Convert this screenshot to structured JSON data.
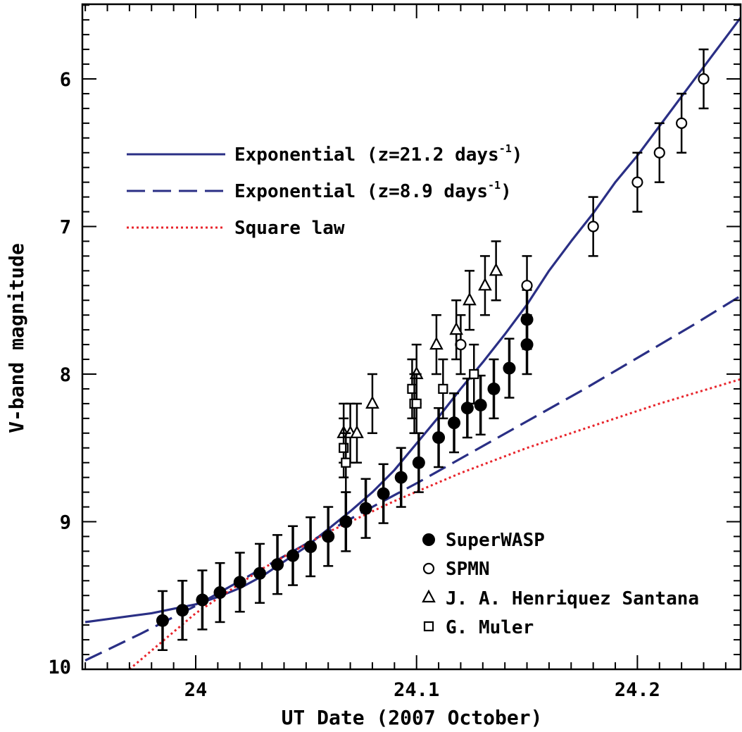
{
  "chart_data": {
    "type": "scatter",
    "xlabel": "UT Date (2007 October)",
    "ylabel": "V-band magnitude",
    "xlim": [
      23.95,
      24.25
    ],
    "ylim": [
      10.0,
      5.5
    ],
    "y_axis_inverted": true,
    "xticks": [
      {
        "value": 24.0,
        "label": "24"
      },
      {
        "value": 24.1,
        "label": "24.1"
      },
      {
        "value": 24.2,
        "label": "24.2"
      }
    ],
    "yticks": [
      {
        "value": 6,
        "label": "6"
      },
      {
        "value": 7,
        "label": "7"
      },
      {
        "value": 8,
        "label": "8"
      },
      {
        "value": 9,
        "label": "9"
      },
      {
        "value": 10,
        "label": "10"
      }
    ],
    "grid": false,
    "line_legend": {
      "placement": "upper-left",
      "entries": [
        {
          "label": "Exponential (z=21.2 days",
          "sup": "-1",
          "label_end": ")",
          "style": "solid",
          "color": "#2a2f85"
        },
        {
          "label": "Exponential (z=8.9 days",
          "sup": "-1",
          "label_end": ")",
          "style": "dashed",
          "color": "#2a2f85"
        },
        {
          "label": "Square law",
          "sup": "",
          "label_end": "",
          "style": "dotted",
          "color": "#e8242b"
        }
      ]
    },
    "marker_legend": {
      "placement": "lower-right",
      "entries": [
        {
          "label": "SuperWASP",
          "marker": "filled-circle"
        },
        {
          "label": "SPMN",
          "marker": "open-circle"
        },
        {
          "label": "J. A. Henriquez Santana",
          "marker": "open-triangle"
        },
        {
          "label": "G. Muler",
          "marker": "open-square"
        }
      ]
    },
    "models": [
      {
        "name": "Exponential (z=21.2 days-1)",
        "style": "solid",
        "color": "#2a2f85",
        "x": [
          23.95,
          23.96,
          23.97,
          23.98,
          23.99,
          24.0,
          24.01,
          24.02,
          24.03,
          24.04,
          24.05,
          24.06,
          24.07,
          24.08,
          24.09,
          24.1,
          24.11,
          24.12,
          24.13,
          24.14,
          24.15,
          24.16,
          24.17,
          24.18,
          24.19,
          24.2,
          24.21,
          24.22,
          24.23,
          24.24,
          24.25
        ],
        "y": [
          9.68,
          9.66,
          9.64,
          9.62,
          9.59,
          9.56,
          9.51,
          9.45,
          9.37,
          9.27,
          9.17,
          9.05,
          8.93,
          8.8,
          8.65,
          8.47,
          8.29,
          8.1,
          7.92,
          7.73,
          7.53,
          7.3,
          7.1,
          6.91,
          6.7,
          6.52,
          6.32,
          6.12,
          5.92,
          5.72,
          5.52
        ]
      },
      {
        "name": "Exponential (z=8.9 days-1)",
        "style": "dashed",
        "color": "#2a2f85",
        "x": [
          23.95,
          23.975,
          24.0,
          24.025,
          24.05,
          24.075,
          24.1,
          24.125,
          24.15,
          24.175,
          24.2,
          24.225,
          24.25
        ],
        "y": [
          9.94,
          9.76,
          9.57,
          9.36,
          9.15,
          8.94,
          8.74,
          8.53,
          8.32,
          8.11,
          7.89,
          7.67,
          7.44
        ]
      },
      {
        "name": "Square law",
        "style": "dotted",
        "color": "#e8242b",
        "x": [
          23.97,
          24.0,
          24.03,
          24.06,
          24.09,
          24.12,
          24.15,
          24.18,
          24.21,
          24.25
        ],
        "y": [
          10.0,
          9.62,
          9.32,
          9.07,
          8.86,
          8.67,
          8.5,
          8.35,
          8.2,
          8.02
        ]
      }
    ],
    "series": [
      {
        "name": "SuperWASP",
        "marker": "filled-circle",
        "x": [
          23.985,
          23.994,
          24.003,
          24.011,
          24.02,
          24.029,
          24.037,
          24.044,
          24.052,
          24.06,
          24.068,
          24.077,
          24.085,
          24.093,
          24.101,
          24.11,
          24.117,
          24.123,
          24.129,
          24.135,
          24.142,
          24.15,
          24.15
        ],
        "y": [
          9.67,
          9.6,
          9.53,
          9.48,
          9.41,
          9.35,
          9.29,
          9.23,
          9.17,
          9.1,
          9.0,
          8.91,
          8.81,
          8.7,
          8.6,
          8.43,
          8.33,
          8.23,
          8.21,
          8.1,
          7.96,
          7.8,
          7.63
        ],
        "yerr": [
          0.2,
          0.2,
          0.2,
          0.2,
          0.2,
          0.2,
          0.2,
          0.2,
          0.2,
          0.2,
          0.2,
          0.2,
          0.2,
          0.2,
          0.2,
          0.2,
          0.2,
          0.2,
          0.2,
          0.2,
          0.2,
          0.2,
          0.2
        ]
      },
      {
        "name": "SPMN",
        "marker": "open-circle",
        "x": [
          24.12,
          24.15,
          24.18,
          24.2,
          24.21,
          24.22,
          24.23
        ],
        "y": [
          7.8,
          7.4,
          7.0,
          6.7,
          6.5,
          6.3,
          6.0
        ],
        "yerr": [
          0.2,
          0.2,
          0.2,
          0.2,
          0.2,
          0.2,
          0.2
        ]
      },
      {
        "name": "J. A. Henriquez Santana",
        "marker": "open-triangle",
        "x": [
          24.067,
          24.07,
          24.073,
          24.08,
          24.1,
          24.109,
          24.118,
          24.124,
          24.131,
          24.136
        ],
        "y": [
          8.4,
          8.4,
          8.4,
          8.2,
          8.0,
          7.8,
          7.7,
          7.5,
          7.4,
          7.3
        ],
        "yerr": [
          0.2,
          0.2,
          0.2,
          0.2,
          0.2,
          0.2,
          0.2,
          0.2,
          0.2,
          0.2
        ]
      },
      {
        "name": "G. Muler",
        "marker": "open-square",
        "x": [
          24.067,
          24.068,
          24.098,
          24.099,
          24.1,
          24.112,
          24.126
        ],
        "y": [
          8.5,
          8.6,
          8.1,
          8.2,
          8.2,
          8.1,
          8.0
        ],
        "yerr": [
          0.2,
          0.2,
          0.2,
          0.2,
          0.2,
          0.2,
          0.2
        ]
      }
    ]
  }
}
